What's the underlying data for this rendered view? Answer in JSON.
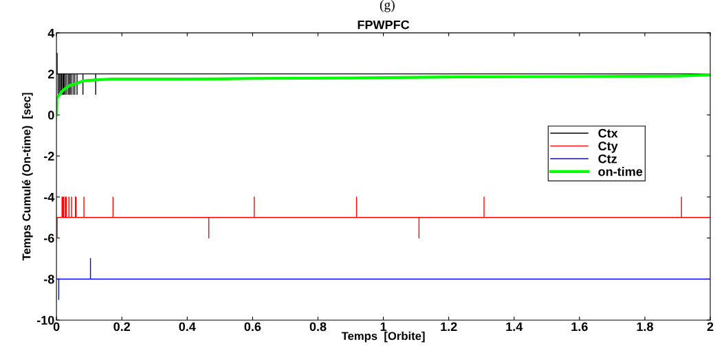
{
  "chart_data": {
    "type": "line",
    "title": "FPWPFC",
    "xlabel": "Temps  [Orbite]",
    "ylabel": "Temps Cumulé (On-time)  [sec]",
    "annotations": [
      "(g)"
    ],
    "xlim": [
      0,
      2
    ],
    "ylim": [
      -10,
      4
    ],
    "xticks": [
      0,
      0.2,
      0.4,
      0.6,
      0.8,
      1,
      1.2,
      1.4,
      1.6,
      1.8,
      2
    ],
    "yticks": [
      -10,
      -8,
      -6,
      -4,
      -2,
      0,
      2,
      4
    ],
    "grid": false,
    "legend": "right",
    "marker": "none",
    "line_style": "solid",
    "series": [
      {
        "name": "Ctx",
        "color": "#000000",
        "x": [
          0,
          0.002,
          0.002,
          0.005,
          0.005,
          0.005,
          0.009,
          0.009,
          0.009,
          0.013,
          0.013,
          0.013,
          0.016,
          0.016,
          0.016,
          0.02,
          0.02,
          0.02,
          0.023,
          0.023,
          0.023,
          0.027,
          0.027,
          0.027,
          0.032,
          0.032,
          0.032,
          0.037,
          0.037,
          0.037,
          0.041,
          0.041,
          0.041,
          0.045,
          0.045,
          0.045,
          0.051,
          0.051,
          0.051,
          0.056,
          0.056,
          0.056,
          0.063,
          0.063,
          0.063,
          0.081,
          0.081,
          0.081,
          0.12,
          0.12,
          0.12,
          2
        ],
        "values": [
          3,
          3,
          2,
          2,
          1,
          2,
          2,
          1,
          2,
          2,
          1,
          2,
          2,
          1,
          2,
          2,
          1,
          2,
          2,
          1,
          2,
          2,
          1,
          2,
          2,
          1,
          2,
          2,
          1,
          2,
          2,
          1,
          2,
          2,
          1,
          2,
          2,
          1,
          2,
          2,
          1,
          2,
          2,
          1,
          2,
          2,
          1,
          2,
          2,
          1,
          2,
          2
        ]
      },
      {
        "name": "Cty",
        "color": "#ff0000",
        "x": [
          0,
          0.002,
          0.002,
          0.017,
          0.017,
          0.017,
          0.02,
          0.02,
          0.02,
          0.022,
          0.022,
          0.022,
          0.027,
          0.027,
          0.027,
          0.03,
          0.03,
          0.03,
          0.038,
          0.038,
          0.038,
          0.046,
          0.046,
          0.046,
          0.058,
          0.058,
          0.058,
          0.06,
          0.06,
          0.06,
          0.084,
          0.084,
          0.084,
          0.173,
          0.173,
          0.173,
          0.466,
          0.466,
          0.466,
          0.605,
          0.605,
          0.605,
          0.918,
          0.918,
          0.918,
          1.109,
          1.109,
          1.109,
          1.308,
          1.308,
          1.308,
          1.912,
          1.912,
          1.912,
          2
        ],
        "values": [
          -6,
          -6,
          -5,
          -5,
          -4,
          -5,
          -5,
          -4,
          -5,
          -5,
          -4,
          -5,
          -5,
          -4,
          -5,
          -5,
          -4,
          -5,
          -5,
          -4,
          -5,
          -5,
          -4,
          -5,
          -5,
          -4,
          -5,
          -5,
          -4,
          -5,
          -5,
          -4,
          -5,
          -5,
          -4,
          -5,
          -5,
          -6,
          -5,
          -5,
          -4,
          -5,
          -5,
          -4,
          -5,
          -5,
          -6,
          -5,
          -5,
          -4,
          -5,
          -5,
          -4,
          -5,
          -5
        ]
      },
      {
        "name": "Ctz",
        "color": "#0000ff",
        "x": [
          0,
          0.007,
          0.007,
          0.007,
          0.104,
          0.104,
          0.104,
          2
        ],
        "values": [
          -8,
          -8,
          -9,
          -8,
          -8,
          -7,
          -8,
          -8
        ]
      },
      {
        "name": "on-time",
        "color": "#00ff00",
        "x": [
          0,
          0.001,
          0.005,
          0.01,
          0.02,
          0.03,
          0.039,
          0.063,
          0.081,
          0.12,
          0.17,
          0.4,
          0.5,
          0.6,
          0.9,
          1.2,
          1.6,
          1.9,
          2
        ],
        "values": [
          0,
          0.8,
          0.9,
          1.0,
          1.2,
          1.32,
          1.43,
          1.54,
          1.66,
          1.71,
          1.75,
          1.75,
          1.76,
          1.78,
          1.8,
          1.85,
          1.87,
          1.9,
          1.95
        ]
      }
    ]
  }
}
